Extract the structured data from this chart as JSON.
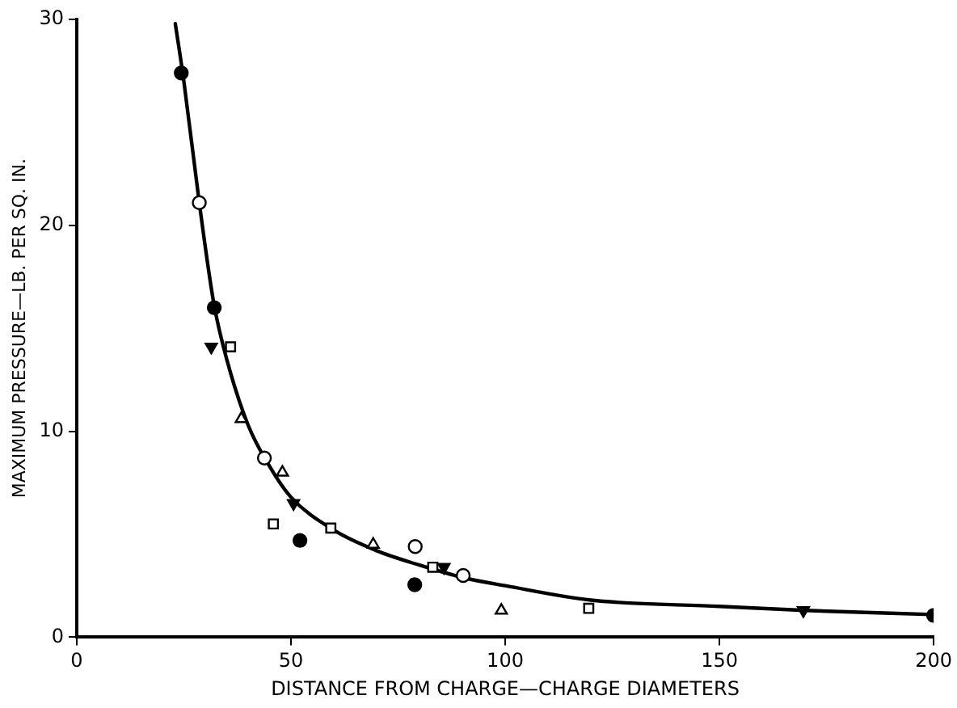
{
  "chart_data": {
    "type": "scatter",
    "xlabel": "DISTANCE FROM CHARGE—CHARGE DIAMETERS",
    "ylabel": "MAXIMUM PRESSURE—LB. PER SQ. IN.",
    "xlim": [
      0,
      200
    ],
    "xticks": [
      0,
      50,
      100,
      150,
      200
    ],
    "ylim": [
      0,
      30
    ],
    "yticks": [
      0,
      10,
      20,
      30
    ],
    "grid": false,
    "legend": false,
    "series": [
      {
        "color": "#000000",
        "marker": "circle",
        "x": [
          24.4,
          32.1,
          52.1,
          78.9,
          200
        ],
        "values": [
          27.4,
          16.0,
          4.7,
          2.55,
          1.06
        ]
      },
      {
        "color": "#ffffff",
        "marker": "circle",
        "x": [
          28.6,
          43.8,
          79.0,
          90.2
        ],
        "values": [
          21.1,
          8.7,
          4.4,
          3.0
        ]
      },
      {
        "color": "#000000",
        "marker": "triangle_down",
        "x": [
          31.4,
          50.6,
          85.7,
          169.6
        ],
        "values": [
          14.1,
          6.5,
          3.4,
          1.3
        ]
      },
      {
        "color": "#ffffff",
        "marker": "square",
        "x": [
          35.9,
          45.9,
          59.3,
          83.1,
          119.5
        ],
        "values": [
          14.1,
          5.5,
          5.3,
          3.4,
          1.4
        ]
      },
      {
        "color": "#ffffff",
        "marker": "triangle",
        "x": [
          38.4,
          48.0,
          69.2,
          99.1
        ],
        "values": [
          10.6,
          8.0,
          4.5,
          1.3
        ]
      },
      {
        "type": "line",
        "color": "#000000",
        "marker": "none",
        "line_style": "solid",
        "x": [
          23,
          25,
          28.6,
          32,
          35,
          40,
          45,
          50,
          60,
          70,
          80,
          90,
          100,
          120,
          150,
          170,
          200
        ],
        "values": [
          29.8,
          27,
          21.1,
          16.2,
          13.5,
          10.3,
          8.3,
          6.8,
          5.2,
          4.2,
          3.5,
          2.9,
          2.5,
          1.8,
          1.5,
          1.3,
          1.1
        ]
      }
    ]
  }
}
